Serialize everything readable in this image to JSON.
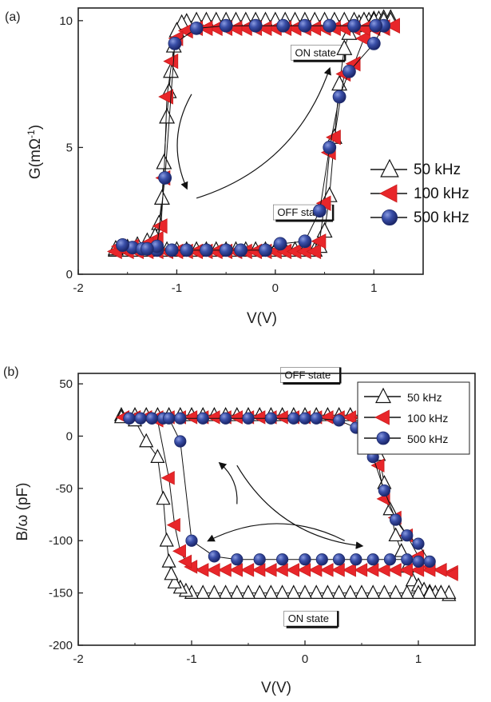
{
  "colors": {
    "50 kHz": {
      "fill": "#ffffff",
      "stroke": "#111111"
    },
    "100 kHz": {
      "fill": "#e8262a",
      "stroke": "#c81c1c"
    },
    "500 kHz": {
      "fill": "#3a4fa8",
      "stroke": "#1e2c6e"
    }
  },
  "chart_data": [
    {
      "type": "scatter",
      "panel_label": "(a)",
      "xlabel": "V(V)",
      "ylabel": "G(mΩ-1)",
      "ylabel_main": "G(mΩ",
      "ylabel_sup": "-1",
      "ylabel_close": ")",
      "xlim": [
        -2,
        1.5
      ],
      "ylim": [
        0,
        10.5
      ],
      "xticks": [
        -2,
        -1,
        0,
        1
      ],
      "xtick_labels": [
        "-2",
        "-1",
        "0",
        "1"
      ],
      "yticks": [
        0,
        5,
        10
      ],
      "ytick_labels": [
        "0",
        "5",
        "10"
      ],
      "legend_position": "right",
      "annotations": [
        {
          "text": "ON state",
          "x": 0.2,
          "y": 8.6
        },
        {
          "text": "OFF state",
          "x": 0.02,
          "y": 2.3
        }
      ],
      "arrows": [
        {
          "direction": "clockwise-upper",
          "from": [
            -0.85,
            7.1
          ],
          "to": [
            -0.9,
            3.4
          ]
        },
        {
          "direction": "clockwise-lower",
          "from": [
            -0.8,
            3.0
          ],
          "to": [
            0.55,
            8.1
          ]
        }
      ],
      "series": [
        {
          "name": "50 kHz",
          "marker": "triangle-up",
          "x": [
            -1.62,
            -1.5,
            -1.4,
            -1.3,
            -1.2,
            -1.1,
            -1.0,
            -0.9,
            -0.8,
            -0.7,
            -0.6,
            -0.5,
            -0.4,
            -0.3,
            -0.2,
            -0.1,
            0.0,
            0.1,
            0.2,
            0.3,
            0.4,
            0.45,
            0.5,
            0.55,
            0.6,
            0.65,
            0.7,
            0.75,
            0.8,
            0.85,
            0.9,
            0.95,
            1.0,
            1.05,
            1.1,
            1.17,
            1.17,
            1.1,
            1.0,
            0.9,
            0.8,
            0.7,
            0.6,
            0.5,
            0.4,
            0.3,
            0.2,
            0.1,
            0.0,
            -0.1,
            -0.2,
            -0.3,
            -0.4,
            -0.5,
            -0.6,
            -0.7,
            -0.8,
            -0.9,
            -0.95,
            -1.0,
            -1.03,
            -1.06,
            -1.08,
            -1.1,
            -1.13,
            -1.15,
            -1.18,
            -1.22,
            -1.3,
            -1.4,
            -1.5,
            -1.62
          ],
          "y": [
            0.95,
            0.95,
            0.95,
            0.95,
            0.95,
            0.95,
            0.95,
            0.95,
            0.95,
            0.95,
            0.95,
            0.95,
            0.95,
            0.95,
            0.95,
            0.95,
            0.95,
            0.95,
            0.95,
            0.95,
            0.95,
            1.1,
            1.7,
            3.1,
            5.4,
            7.5,
            8.9,
            9.5,
            9.8,
            9.9,
            10.0,
            10.0,
            10.05,
            10.05,
            10.1,
            10.1,
            10.0,
            10.0,
            10.0,
            10.0,
            10.0,
            10.0,
            10.0,
            10.0,
            10.0,
            10.0,
            10.0,
            10.0,
            10.0,
            10.0,
            10.0,
            10.0,
            10.0,
            10.0,
            10.0,
            10.0,
            10.0,
            9.95,
            9.9,
            9.6,
            9.0,
            8.0,
            7.2,
            6.2,
            4.4,
            3.0,
            2.0,
            1.5,
            1.3,
            1.15,
            1.05,
            1.0
          ]
        },
        {
          "name": "100 kHz",
          "marker": "triangle-left",
          "x": [
            -1.62,
            -1.5,
            -1.4,
            -1.3,
            -1.2,
            -1.1,
            -1.0,
            -0.9,
            -0.8,
            -0.7,
            -0.6,
            -0.5,
            -0.4,
            -0.3,
            -0.2,
            -0.1,
            0.0,
            0.1,
            0.2,
            0.3,
            0.4,
            0.45,
            0.5,
            0.55,
            0.6,
            0.7,
            0.8,
            0.9,
            1.0,
            1.1,
            1.2,
            1.2,
            1.1,
            1.0,
            0.9,
            0.8,
            0.7,
            0.6,
            0.5,
            0.4,
            0.3,
            0.2,
            0.1,
            0.0,
            -0.1,
            -0.2,
            -0.3,
            -0.4,
            -0.5,
            -0.6,
            -0.7,
            -0.8,
            -0.9,
            -1.0,
            -1.05,
            -1.1,
            -1.13,
            -1.16,
            -1.2,
            -1.3,
            -1.45,
            -1.58
          ],
          "y": [
            0.9,
            0.9,
            0.9,
            0.9,
            0.9,
            0.9,
            0.9,
            0.9,
            0.9,
            0.9,
            0.9,
            0.9,
            0.9,
            0.9,
            0.9,
            0.9,
            0.9,
            0.9,
            0.9,
            0.9,
            0.9,
            1.3,
            2.8,
            4.8,
            5.4,
            7.9,
            8.3,
            9.3,
            9.7,
            9.7,
            9.8,
            9.8,
            9.75,
            9.7,
            9.7,
            9.7,
            9.7,
            9.7,
            9.7,
            9.7,
            9.7,
            9.7,
            9.7,
            9.7,
            9.7,
            9.7,
            9.7,
            9.7,
            9.7,
            9.7,
            9.7,
            9.7,
            9.6,
            9.3,
            8.4,
            7.0,
            3.8,
            1.9,
            1.4,
            1.2,
            1.1,
            1.1
          ]
        },
        {
          "name": "500 kHz",
          "marker": "circle",
          "x": [
            -1.55,
            -1.45,
            -1.35,
            -1.2,
            -1.05,
            -0.9,
            -0.7,
            -0.5,
            -0.35,
            -0.1,
            0.05,
            0.3,
            0.45,
            0.55,
            0.65,
            0.75,
            1.0,
            1.1,
            1.02,
            0.8,
            0.55,
            0.3,
            0.08,
            -0.2,
            -0.5,
            -0.8,
            -1.02,
            -1.12,
            -1.2,
            -1.3,
            -1.55
          ],
          "y": [
            1.15,
            1.05,
            1.0,
            0.95,
            0.95,
            0.95,
            0.95,
            0.95,
            0.95,
            0.95,
            1.2,
            1.3,
            2.5,
            5.0,
            7.0,
            8.0,
            9.1,
            9.8,
            9.8,
            9.8,
            9.8,
            9.8,
            9.8,
            9.8,
            9.8,
            9.7,
            9.1,
            3.8,
            1.1,
            1.0,
            1.15
          ]
        }
      ]
    },
    {
      "type": "scatter",
      "panel_label": "(b)",
      "xlabel": "V(V)",
      "ylabel": "B/ω (pF)",
      "xlim": [
        -2,
        1.5
      ],
      "ylim": [
        -200,
        60
      ],
      "xticks": [
        -2,
        -1,
        0,
        1
      ],
      "xtick_labels": [
        "-2",
        "-1",
        "0",
        "1"
      ],
      "yticks": [
        -200,
        -150,
        -100,
        -50,
        0,
        50
      ],
      "ytick_labels": [
        "-200",
        "-150",
        "-100",
        "-50",
        "0",
        "50"
      ],
      "legend_position": "top-right",
      "annotations": [
        {
          "text": "OFF state",
          "x": -0.18,
          "y": 55
        },
        {
          "text": "ON state",
          "x": -0.15,
          "y": -178
        }
      ],
      "arrows": [
        {
          "direction": "upper",
          "from": [
            -0.6,
            -65
          ],
          "to": [
            -0.75,
            -26
          ]
        },
        {
          "direction": "upper-right",
          "from": [
            -0.6,
            -28
          ],
          "to": [
            0.5,
            -105
          ]
        },
        {
          "direction": "lower",
          "from": [
            0.35,
            -100
          ],
          "to": [
            -0.85,
            -100
          ]
        }
      ],
      "series": [
        {
          "name": "50 kHz",
          "marker": "triangle-up",
          "x": [
            -1.62,
            -1.5,
            -1.4,
            -1.3,
            -1.2,
            -1.1,
            -1.0,
            -0.9,
            -0.8,
            -0.7,
            -0.6,
            -0.5,
            -0.4,
            -0.3,
            -0.2,
            -0.1,
            0.0,
            0.1,
            0.2,
            0.3,
            0.4,
            0.5,
            0.55,
            0.6,
            0.65,
            0.7,
            0.75,
            0.8,
            0.85,
            0.9,
            0.95,
            1.0,
            1.05,
            1.1,
            1.15,
            1.2,
            1.27,
            1.27,
            1.2,
            1.1,
            1.0,
            0.9,
            0.8,
            0.7,
            0.6,
            0.5,
            0.4,
            0.3,
            0.2,
            0.1,
            0.0,
            -0.1,
            -0.2,
            -0.3,
            -0.4,
            -0.5,
            -0.6,
            -0.7,
            -0.8,
            -0.9,
            -1.0,
            -1.05,
            -1.1,
            -1.15,
            -1.18,
            -1.2,
            -1.22,
            -1.25,
            -1.3,
            -1.4,
            -1.5,
            -1.62
          ],
          "y": [
            20,
            20,
            20,
            20,
            20,
            20,
            20,
            20,
            20,
            20,
            20,
            20,
            20,
            20,
            20,
            20,
            20,
            20,
            20,
            20,
            20,
            20,
            18,
            5,
            -18,
            -45,
            -70,
            -95,
            -110,
            -125,
            -138,
            -143,
            -147,
            -149,
            -150,
            -150,
            -152,
            -150,
            -150,
            -150,
            -150,
            -150,
            -150,
            -150,
            -150,
            -150,
            -150,
            -150,
            -150,
            -150,
            -150,
            -150,
            -150,
            -150,
            -150,
            -150,
            -150,
            -150,
            -150,
            -150,
            -150,
            -148,
            -145,
            -140,
            -132,
            -120,
            -100,
            -60,
            -20,
            -5,
            15,
            18
          ]
        },
        {
          "name": "100 kHz",
          "marker": "triangle-left",
          "x": [
            -1.6,
            -1.5,
            -1.4,
            -1.3,
            -1.2,
            -1.1,
            -1.0,
            -0.9,
            -0.8,
            -0.7,
            -0.6,
            -0.5,
            -0.4,
            -0.3,
            -0.2,
            -0.1,
            0.0,
            0.1,
            0.2,
            0.3,
            0.4,
            0.5,
            0.55,
            0.6,
            0.65,
            0.7,
            0.8,
            0.9,
            1.0,
            1.1,
            1.2,
            1.3,
            1.3,
            1.2,
            1.1,
            1.0,
            0.9,
            0.8,
            0.7,
            0.6,
            0.5,
            0.4,
            0.3,
            0.2,
            0.1,
            0.0,
            -0.1,
            -0.2,
            -0.3,
            -0.4,
            -0.5,
            -0.6,
            -0.7,
            -0.8,
            -0.9,
            -1.0,
            -1.05,
            -1.1,
            -1.15,
            -1.2,
            -1.3,
            -1.4,
            -1.5,
            -1.6
          ],
          "y": [
            18,
            18,
            18,
            18,
            18,
            18,
            18,
            18,
            18,
            18,
            18,
            18,
            18,
            18,
            18,
            18,
            18,
            18,
            18,
            18,
            18,
            18,
            10,
            -5,
            -28,
            -60,
            -78,
            -95,
            -115,
            -125,
            -128,
            -130,
            -132,
            -128,
            -128,
            -128,
            -128,
            -128,
            -128,
            -128,
            -128,
            -128,
            -128,
            -128,
            -128,
            -128,
            -128,
            -128,
            -128,
            -128,
            -128,
            -128,
            -128,
            -128,
            -128,
            -125,
            -120,
            -110,
            -85,
            -40,
            15,
            18,
            18,
            18
          ]
        },
        {
          "name": "500 kHz",
          "marker": "circle",
          "x": [
            -1.55,
            -1.45,
            -1.35,
            -1.25,
            -1.1,
            -0.9,
            -0.7,
            -0.5,
            -0.3,
            -0.1,
            0.0,
            0.1,
            0.3,
            0.45,
            0.6,
            0.7,
            0.8,
            0.9,
            1.0,
            1.1,
            1.0,
            0.9,
            0.75,
            0.6,
            0.45,
            0.3,
            0.15,
            0.0,
            -0.2,
            -0.4,
            -0.6,
            -0.8,
            -1.0,
            -1.1,
            -1.2,
            -1.35,
            -1.55
          ],
          "y": [
            17,
            17,
            17,
            17,
            17,
            17,
            17,
            17,
            17,
            17,
            17,
            17,
            15,
            8,
            -20,
            -52,
            -80,
            -95,
            -103,
            -120,
            -120,
            -118,
            -118,
            -118,
            -118,
            -118,
            -118,
            -118,
            -118,
            -118,
            -118,
            -115,
            -100,
            -5,
            17,
            17,
            17
          ]
        }
      ]
    }
  ]
}
